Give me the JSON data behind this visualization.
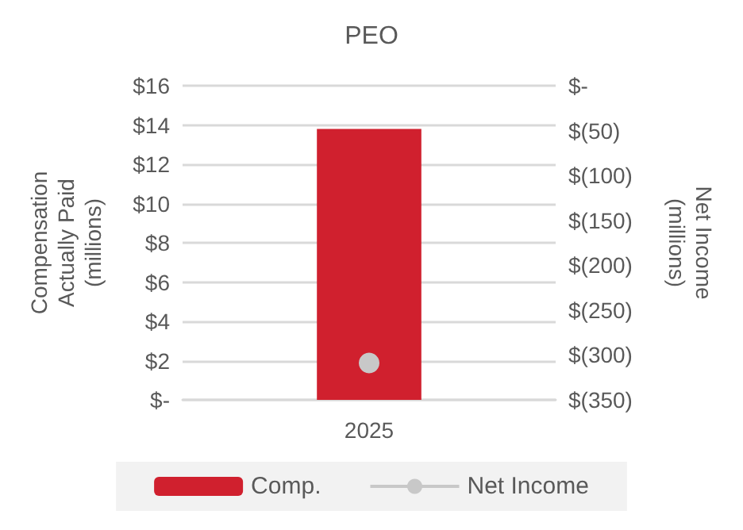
{
  "chart_data": {
    "type": "bar",
    "title": "PEO",
    "ylabel": "Compensation\nActually Paid\n(millions)",
    "y2label": "Net Income\n(millions)",
    "categories": [
      "2025"
    ],
    "series": [
      {
        "name": "Comp.",
        "color": "#d0202e",
        "values": [
          13.8
        ]
      },
      {
        "name": "Net Income",
        "type": "line",
        "axis": "y2",
        "color": "#c8c8c8",
        "values": [
          -309
        ]
      }
    ],
    "ylim": [
      0,
      16
    ],
    "yticks": [
      {
        "value": 0,
        "label": "$-"
      },
      {
        "value": 2,
        "label": "$2"
      },
      {
        "value": 4,
        "label": "$4"
      },
      {
        "value": 6,
        "label": "$6"
      },
      {
        "value": 8,
        "label": "$8"
      },
      {
        "value": 10,
        "label": "$10"
      },
      {
        "value": 12,
        "label": "$12"
      },
      {
        "value": 14,
        "label": "$14"
      },
      {
        "value": 16,
        "label": "$16"
      }
    ],
    "y2lim": [
      -350,
      0
    ],
    "y2ticks": [
      {
        "value": -350,
        "label": "$(350)"
      },
      {
        "value": -300,
        "label": "$(300)"
      },
      {
        "value": -250,
        "label": "$(250)"
      },
      {
        "value": -200,
        "label": "$(200)"
      },
      {
        "value": -150,
        "label": "$(150)"
      },
      {
        "value": -100,
        "label": "$(100)"
      },
      {
        "value": -50,
        "label": "$(50)"
      },
      {
        "value": 0,
        "label": "$-"
      }
    ],
    "grid": "y",
    "legend": "bottom",
    "marker": "circle"
  }
}
